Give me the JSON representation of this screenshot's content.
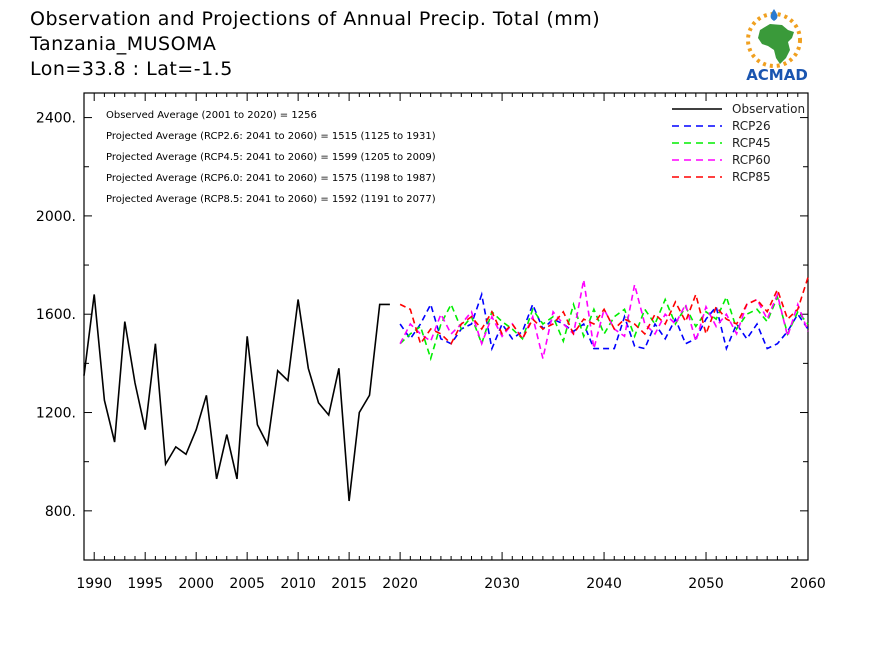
{
  "header": {
    "title": "Observation and Projections of Annual Precip. Total (mm)",
    "location": "Tanzania_MUSOMA",
    "coords": "Lon=33.8 : Lat=-1.5"
  },
  "logo": {
    "text": "ACMAD",
    "icon": "africa-map-with-sun-and-raindrop-icon"
  },
  "notes": [
    "Observed Average (2001 to 2020) = 1256",
    "Projected Average (RCP2.6: 2041 to 2060) = 1515 (1125 to 1931)",
    "Projected Average (RCP4.5: 2041 to 2060) = 1599 (1205 to 2009)",
    "Projected Average (RCP6.0: 2041 to 2060) = 1575 (1198 to 1987)",
    "Projected Average (RCP8.5: 2041 to 2060) = 1592 (1191 to 2077)"
  ],
  "chart_data": {
    "type": "line",
    "title": "Observation and Projections of Annual Precip. Total (mm)",
    "xlim": [
      1989,
      2060
    ],
    "ylim": [
      600,
      2500
    ],
    "y_ticks": [
      800,
      1200,
      1600,
      2000,
      2400
    ],
    "y_tick_labels": [
      "800.",
      "1200.",
      "1600.",
      "2000.",
      "2400."
    ],
    "x_ticks": [
      1990,
      1995,
      2000,
      2005,
      2010,
      2015,
      2020,
      2030,
      2040,
      2050,
      2060
    ],
    "x_tick_labels": [
      "1990",
      "1995",
      "2000",
      "2005",
      "2010",
      "2015",
      "2020",
      "2030",
      "2040",
      "2050",
      "2060"
    ],
    "legend_position": "top-right",
    "series": [
      {
        "name": "Observation",
        "color": "#000000",
        "dash": "solid",
        "x": [
          1989,
          1990,
          1991,
          1992,
          1993,
          1994,
          1995,
          1996,
          1997,
          1998,
          1999,
          2000,
          2001,
          2002,
          2003,
          2004,
          2005,
          2006,
          2007,
          2008,
          2009,
          2010,
          2011,
          2012,
          2013,
          2014,
          2015,
          2016,
          2017,
          2018,
          2019
        ],
        "values": [
          1350,
          1680,
          1250,
          1080,
          1570,
          1320,
          1130,
          1480,
          990,
          1060,
          1030,
          1130,
          1270,
          930,
          1110,
          930,
          1510,
          1150,
          1070,
          1370,
          1330,
          1660,
          1380,
          1240,
          1190,
          1380,
          840,
          1200,
          1270,
          1640,
          1640
        ]
      },
      {
        "name": "RCP26",
        "color": "#0000ff",
        "dash": "dashed",
        "x": [
          2020,
          2021,
          2022,
          2023,
          2024,
          2025,
          2026,
          2027,
          2028,
          2029,
          2030,
          2031,
          2032,
          2033,
          2034,
          2035,
          2036,
          2037,
          2038,
          2039,
          2040,
          2041,
          2042,
          2043,
          2044,
          2045,
          2046,
          2047,
          2048,
          2049,
          2050,
          2051,
          2052,
          2053,
          2054,
          2055,
          2056,
          2057,
          2058,
          2059,
          2060
        ],
        "values": [
          1560,
          1500,
          1560,
          1640,
          1500,
          1480,
          1540,
          1560,
          1680,
          1460,
          1560,
          1500,
          1530,
          1640,
          1540,
          1580,
          1560,
          1530,
          1560,
          1460,
          1460,
          1460,
          1590,
          1470,
          1460,
          1560,
          1500,
          1580,
          1480,
          1500,
          1580,
          1630,
          1460,
          1560,
          1500,
          1560,
          1460,
          1480,
          1530,
          1600,
          1540
        ]
      },
      {
        "name": "RCP45",
        "color": "#00ee00",
        "dash": "dashed",
        "x": [
          2020,
          2021,
          2022,
          2023,
          2024,
          2025,
          2026,
          2027,
          2028,
          2029,
          2030,
          2031,
          2032,
          2033,
          2034,
          2035,
          2036,
          2037,
          2038,
          2039,
          2040,
          2041,
          2042,
          2043,
          2044,
          2045,
          2046,
          2047,
          2048,
          2049,
          2050,
          2051,
          2052,
          2053,
          2054,
          2055,
          2056,
          2057,
          2058,
          2059,
          2060
        ],
        "values": [
          1480,
          1520,
          1550,
          1420,
          1560,
          1640,
          1540,
          1590,
          1480,
          1610,
          1570,
          1540,
          1500,
          1620,
          1560,
          1590,
          1490,
          1640,
          1510,
          1620,
          1520,
          1590,
          1620,
          1510,
          1620,
          1560,
          1660,
          1560,
          1630,
          1550,
          1610,
          1580,
          1670,
          1540,
          1600,
          1620,
          1570,
          1670,
          1520,
          1610,
          1560
        ]
      },
      {
        "name": "RCP60",
        "color": "#ff00ff",
        "dash": "dashed",
        "x": [
          2020,
          2021,
          2022,
          2023,
          2024,
          2025,
          2026,
          2027,
          2028,
          2029,
          2030,
          2031,
          2032,
          2033,
          2034,
          2035,
          2036,
          2037,
          2038,
          2039,
          2040,
          2041,
          2042,
          2043,
          2044,
          2045,
          2046,
          2047,
          2048,
          2049,
          2050,
          2051,
          2052,
          2053,
          2054,
          2055,
          2056,
          2057,
          2058,
          2059,
          2060
        ],
        "values": [
          1480,
          1560,
          1520,
          1490,
          1600,
          1520,
          1560,
          1610,
          1480,
          1590,
          1510,
          1560,
          1500,
          1590,
          1420,
          1610,
          1560,
          1520,
          1740,
          1460,
          1620,
          1540,
          1510,
          1720,
          1560,
          1520,
          1600,
          1560,
          1640,
          1490,
          1630,
          1550,
          1600,
          1520,
          1640,
          1660,
          1580,
          1680,
          1510,
          1640,
          1530
        ]
      },
      {
        "name": "RCP85",
        "color": "#ff0000",
        "dash": "dashed",
        "x": [
          2020,
          2021,
          2022,
          2023,
          2024,
          2025,
          2026,
          2027,
          2028,
          2029,
          2030,
          2031,
          2032,
          2033,
          2034,
          2035,
          2036,
          2037,
          2038,
          2039,
          2040,
          2041,
          2042,
          2043,
          2044,
          2045,
          2046,
          2047,
          2048,
          2049,
          2050,
          2051,
          2052,
          2053,
          2054,
          2055,
          2056,
          2057,
          2058,
          2059,
          2060
        ],
        "values": [
          1640,
          1620,
          1480,
          1540,
          1520,
          1480,
          1560,
          1590,
          1540,
          1610,
          1520,
          1560,
          1500,
          1580,
          1540,
          1560,
          1610,
          1520,
          1580,
          1560,
          1620,
          1540,
          1580,
          1560,
          1520,
          1600,
          1560,
          1650,
          1570,
          1680,
          1520,
          1630,
          1580,
          1560,
          1640,
          1660,
          1610,
          1700,
          1580,
          1620,
          1750
        ]
      }
    ]
  }
}
